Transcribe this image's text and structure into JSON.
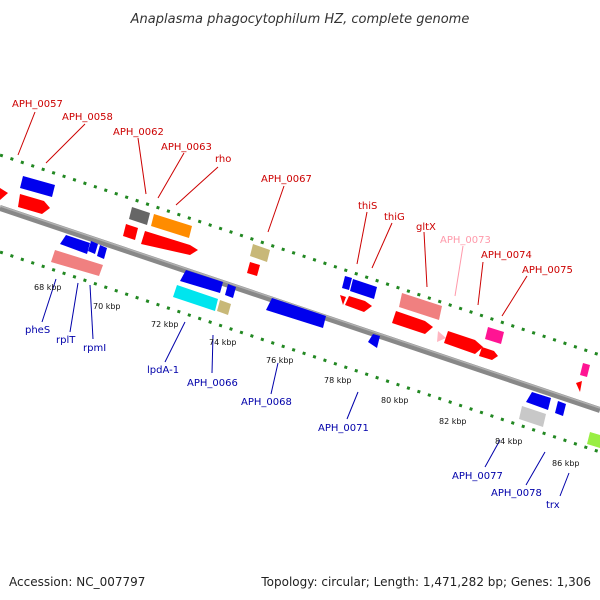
{
  "title": "Anaplasma phagocytophilum HZ, complete genome",
  "footer": {
    "accession": "Accession: NC_007797",
    "summary": "Topology: circular; Length: 1,471,282 bp; Genes: 1,306"
  },
  "colors": {
    "forward_label": "#cc0000",
    "reverse_label": "#0000aa",
    "faint_label": "#ff99aa",
    "backbone": "#888888",
    "guide": "#228822"
  },
  "genes_top": [
    {
      "label": "APH_0057",
      "color": "#cc0000"
    },
    {
      "label": "APH_0058",
      "color": "#cc0000"
    },
    {
      "label": "APH_0062",
      "color": "#cc0000"
    },
    {
      "label": "APH_0063",
      "color": "#cc0000"
    },
    {
      "label": "rho",
      "color": "#cc0000"
    },
    {
      "label": "APH_0067",
      "color": "#cc0000"
    },
    {
      "label": "thiS",
      "color": "#cc0000"
    },
    {
      "label": "thiG",
      "color": "#cc0000"
    },
    {
      "label": "gltX",
      "color": "#cc0000"
    },
    {
      "label": "APH_0073",
      "color": "#ff99aa"
    },
    {
      "label": "APH_0074",
      "color": "#cc0000"
    },
    {
      "label": "APH_0075",
      "color": "#cc0000"
    }
  ],
  "genes_bottom": [
    {
      "label": "pheS"
    },
    {
      "label": "rplT"
    },
    {
      "label": "rpmI"
    },
    {
      "label": "lpdA-1"
    },
    {
      "label": "APH_0066"
    },
    {
      "label": "APH_0068"
    },
    {
      "label": "APH_0071"
    },
    {
      "label": "APH_0077"
    },
    {
      "label": "APH_0078"
    },
    {
      "label": "trx"
    }
  ],
  "ticks": [
    "68 kbp",
    "70 kbp",
    "72 kbp",
    "74 kbp",
    "76 kbp",
    "78 kbp",
    "80 kbp",
    "82 kbp",
    "84 kbp",
    "86 kbp"
  ]
}
